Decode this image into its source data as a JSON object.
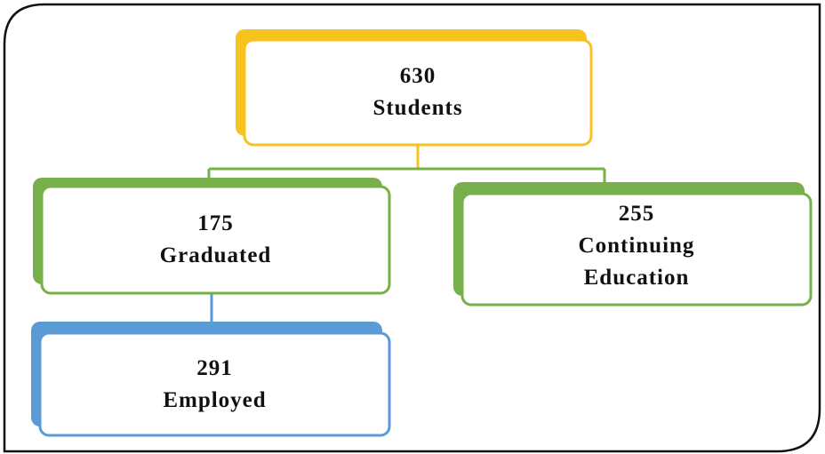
{
  "nodes": [
    {
      "value": 630,
      "label": "Students"
    },
    {
      "value": 175,
      "label": "Graduated"
    },
    {
      "value": 255,
      "label": "Continuing Education"
    },
    {
      "value": 291,
      "label": "Employed"
    }
  ]
}
